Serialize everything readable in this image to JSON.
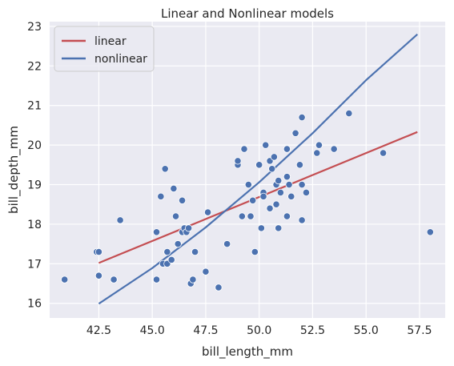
{
  "chart_data": {
    "type": "scatter",
    "title": "Linear and Nonlinear models",
    "xlabel": "bill_length_mm",
    "ylabel": "bill_depth_mm",
    "xlim": [
      40.2,
      58.7
    ],
    "ylim": [
      15.63,
      23.12
    ],
    "xticks": [
      42.5,
      45.0,
      47.5,
      50.0,
      52.5,
      55.0,
      57.5
    ],
    "xtick_labels": [
      "42.5",
      "45.0",
      "47.5",
      "50.0",
      "52.5",
      "55.0",
      "57.5"
    ],
    "yticks": [
      16,
      17,
      18,
      19,
      20,
      21,
      22,
      23
    ],
    "ytick_labels": [
      "16",
      "17",
      "18",
      "19",
      "20",
      "21",
      "22",
      "23"
    ],
    "grid": true,
    "legend_position": "top-left",
    "colors": {
      "background": "#eaeaf2",
      "grid": "#ffffff",
      "points": "#4c72b0",
      "linear": "#c44e52",
      "nonlinear": "#4c72b0"
    },
    "points": [
      [
        40.9,
        16.6
      ],
      [
        42.4,
        17.3
      ],
      [
        42.5,
        17.3
      ],
      [
        42.5,
        16.7
      ],
      [
        43.2,
        16.6
      ],
      [
        43.5,
        18.1
      ],
      [
        45.2,
        17.8
      ],
      [
        45.2,
        16.6
      ],
      [
        45.4,
        18.7
      ],
      [
        45.5,
        17.0
      ],
      [
        45.6,
        19.4
      ],
      [
        45.7,
        17.3
      ],
      [
        45.7,
        17.0
      ],
      [
        45.9,
        17.1
      ],
      [
        46.0,
        18.9
      ],
      [
        46.1,
        18.2
      ],
      [
        46.2,
        17.5
      ],
      [
        46.4,
        17.8
      ],
      [
        46.4,
        18.6
      ],
      [
        46.5,
        17.9
      ],
      [
        46.6,
        17.8
      ],
      [
        46.7,
        17.9
      ],
      [
        46.8,
        16.5
      ],
      [
        46.9,
        16.6
      ],
      [
        47.0,
        17.3
      ],
      [
        47.5,
        16.8
      ],
      [
        47.6,
        18.3
      ],
      [
        48.1,
        16.4
      ],
      [
        48.5,
        17.5
      ],
      [
        49.0,
        19.5
      ],
      [
        49.0,
        19.6
      ],
      [
        49.2,
        18.2
      ],
      [
        49.3,
        19.9
      ],
      [
        49.5,
        19.0
      ],
      [
        49.6,
        18.2
      ],
      [
        49.7,
        18.6
      ],
      [
        49.8,
        17.3
      ],
      [
        50.0,
        19.5
      ],
      [
        50.1,
        17.9
      ],
      [
        50.2,
        18.8
      ],
      [
        50.2,
        18.7
      ],
      [
        50.3,
        20.0
      ],
      [
        50.5,
        19.6
      ],
      [
        50.5,
        18.4
      ],
      [
        50.6,
        19.4
      ],
      [
        50.7,
        19.7
      ],
      [
        50.8,
        19.0
      ],
      [
        50.8,
        18.5
      ],
      [
        50.9,
        17.9
      ],
      [
        50.9,
        19.1
      ],
      [
        51.0,
        18.8
      ],
      [
        51.3,
        19.9
      ],
      [
        51.3,
        18.2
      ],
      [
        51.3,
        19.2
      ],
      [
        51.4,
        19.0
      ],
      [
        51.5,
        18.7
      ],
      [
        51.7,
        20.3
      ],
      [
        51.9,
        19.5
      ],
      [
        52.0,
        20.7
      ],
      [
        52.0,
        19.0
      ],
      [
        52.0,
        18.1
      ],
      [
        52.2,
        18.8
      ],
      [
        52.7,
        19.8
      ],
      [
        52.8,
        20.0
      ],
      [
        53.5,
        19.9
      ],
      [
        54.2,
        20.8
      ],
      [
        55.8,
        19.8
      ],
      [
        58.0,
        17.8
      ]
    ],
    "series": [
      {
        "name": "linear",
        "x": [
          42.5,
          57.4
        ],
        "y": [
          17.02,
          20.33
        ]
      },
      {
        "name": "nonlinear",
        "x": [
          42.5,
          45.0,
          47.5,
          50.0,
          52.5,
          55.0,
          57.4
        ],
        "y": [
          15.99,
          16.89,
          17.92,
          19.06,
          20.3,
          21.64,
          22.8
        ]
      }
    ]
  }
}
